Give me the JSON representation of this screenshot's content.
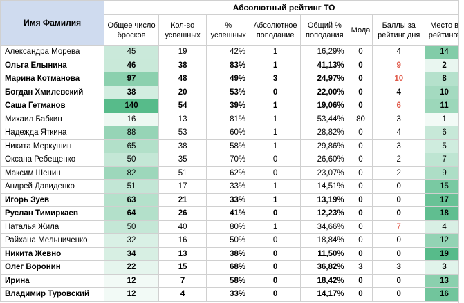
{
  "header": {
    "name_col": "Имя Фамилия",
    "title": "Абсолютный рейтинг ТО",
    "columns": [
      "Общее число бросков",
      "Кол-во успешных",
      "% успешных",
      "Абсолютное поподание",
      "Общий % поподания",
      "Мода",
      "Баллы за рейтинг дня",
      "Место в рейтинге"
    ]
  },
  "rows": [
    {
      "name": "Александра Морева",
      "throws": "45",
      "success": "19",
      "pct": "42%",
      "abs": "1",
      "total_pct": "16,29%",
      "mode": "0",
      "score": "4",
      "place": "14",
      "bold": false,
      "score_red": false
    },
    {
      "name": "Ольга Елынина",
      "throws": "46",
      "success": "38",
      "pct": "83%",
      "abs": "1",
      "total_pct": "41,13%",
      "mode": "0",
      "score": "9",
      "place": "2",
      "bold": true,
      "score_red": true
    },
    {
      "name": "Марина Котманова",
      "throws": "97",
      "success": "48",
      "pct": "49%",
      "abs": "3",
      "total_pct": "24,97%",
      "mode": "0",
      "score": "10",
      "place": "8",
      "bold": true,
      "score_red": true
    },
    {
      "name": "Богдан Хмилевский",
      "throws": "38",
      "success": "20",
      "pct": "53%",
      "abs": "0",
      "total_pct": "22,00%",
      "mode": "0",
      "score": "4",
      "place": "10",
      "bold": true,
      "score_red": false
    },
    {
      "name": "Саша Гетманов",
      "throws": "140",
      "success": "54",
      "pct": "39%",
      "abs": "1",
      "total_pct": "19,06%",
      "mode": "0",
      "score": "6",
      "place": "11",
      "bold": true,
      "score_red": true
    },
    {
      "name": "Михаил Бабкин",
      "throws": "16",
      "success": "13",
      "pct": "81%",
      "abs": "1",
      "total_pct": "53,44%",
      "mode": "80",
      "score": "3",
      "place": "1",
      "bold": false,
      "score_red": false
    },
    {
      "name": "Надежда Яткина",
      "throws": "88",
      "success": "53",
      "pct": "60%",
      "abs": "1",
      "total_pct": "28,82%",
      "mode": "0",
      "score": "4",
      "place": "6",
      "bold": false,
      "score_red": false
    },
    {
      "name": "Никита Меркушин",
      "throws": "65",
      "success": "38",
      "pct": "58%",
      "abs": "1",
      "total_pct": "29,86%",
      "mode": "0",
      "score": "3",
      "place": "5",
      "bold": false,
      "score_red": false
    },
    {
      "name": "Оксана Ребещенко",
      "throws": "50",
      "success": "35",
      "pct": "70%",
      "abs": "0",
      "total_pct": "26,60%",
      "mode": "0",
      "score": "2",
      "place": "7",
      "bold": false,
      "score_red": false
    },
    {
      "name": "Максим Шенин",
      "throws": "82",
      "success": "51",
      "pct": "62%",
      "abs": "0",
      "total_pct": "23,07%",
      "mode": "0",
      "score": "2",
      "place": "9",
      "bold": false,
      "score_red": false
    },
    {
      "name": "Андрей Давиденко",
      "throws": "51",
      "success": "17",
      "pct": "33%",
      "abs": "1",
      "total_pct": "14,51%",
      "mode": "0",
      "score": "0",
      "place": "15",
      "bold": false,
      "score_red": false
    },
    {
      "name": "Игорь Зуев",
      "throws": "63",
      "success": "21",
      "pct": "33%",
      "abs": "1",
      "total_pct": "13,19%",
      "mode": "0",
      "score": "0",
      "place": "17",
      "bold": true,
      "score_red": false
    },
    {
      "name": "Руслан Тимиркаев",
      "throws": "64",
      "success": "26",
      "pct": "41%",
      "abs": "0",
      "total_pct": "12,23%",
      "mode": "0",
      "score": "0",
      "place": "18",
      "bold": true,
      "score_red": false
    },
    {
      "name": "Наталья Жила",
      "throws": "50",
      "success": "40",
      "pct": "80%",
      "abs": "1",
      "total_pct": "34,66%",
      "mode": "0",
      "score": "7",
      "place": "4",
      "bold": false,
      "score_red": true
    },
    {
      "name": "Райхана Мельниченко",
      "throws": "32",
      "success": "16",
      "pct": "50%",
      "abs": "0",
      "total_pct": "18,84%",
      "mode": "0",
      "score": "0",
      "place": "12",
      "bold": false,
      "score_red": false
    },
    {
      "name": "Никита Жевно",
      "throws": "34",
      "success": "13",
      "pct": "38%",
      "abs": "0",
      "total_pct": "11,50%",
      "mode": "0",
      "score": "0",
      "place": "19",
      "bold": true,
      "score_red": false
    },
    {
      "name": "Олег Воронин",
      "throws": "22",
      "success": "15",
      "pct": "68%",
      "abs": "0",
      "total_pct": "36,82%",
      "mode": "3",
      "score": "3",
      "place": "3",
      "bold": true,
      "score_red": false
    },
    {
      "name": "Ирина",
      "throws": "12",
      "success": "7",
      "pct": "58%",
      "abs": "0",
      "total_pct": "18,42%",
      "mode": "0",
      "score": "0",
      "place": "13",
      "bold": true,
      "score_red": false
    },
    {
      "name": "Владимир Туровский",
      "throws": "12",
      "success": "4",
      "pct": "33%",
      "abs": "0",
      "total_pct": "14,17%",
      "mode": "0",
      "score": "0",
      "place": "16",
      "bold": true,
      "score_red": false
    }
  ],
  "colors": {
    "header_name_bg": "#cfdbef",
    "scale_light": "#ffffff",
    "scale_dark": "#57bb8a",
    "score_red": "#e05a4a"
  }
}
